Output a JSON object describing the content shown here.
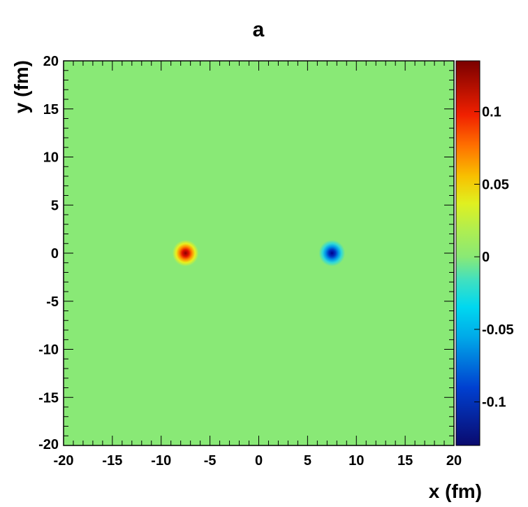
{
  "chart_data": {
    "type": "heatmap",
    "title": "a",
    "xlabel": "x (fm)",
    "ylabel": "y (fm)",
    "xlim": [
      -20,
      20
    ],
    "ylim": [
      -20,
      20
    ],
    "xticks": [
      "-20",
      "-15",
      "-10",
      "-5",
      "0",
      "5",
      "10",
      "15",
      "20"
    ],
    "yticks": [
      "-20",
      "-15",
      "-10",
      "-5",
      "0",
      "5",
      "10",
      "15",
      "20"
    ],
    "background_value": 0,
    "features": [
      {
        "x": -7.5,
        "y": 0,
        "peak": 0.135,
        "sigma": 0.45
      },
      {
        "x": 7.5,
        "y": 0,
        "peak": -0.13,
        "sigma": 0.45
      }
    ],
    "colorbar": {
      "min": -0.13,
      "max": 0.135,
      "ticks": [
        "0.1",
        "0.05",
        "0",
        "-0.05",
        "-0.1"
      ],
      "tick_values": [
        0.1,
        0.05,
        0,
        -0.05,
        -0.1
      ]
    },
    "grid": false,
    "colors": {
      "background_field": "#89e976",
      "positive_peak": "#8b0000",
      "negative_peak": "#00008b"
    }
  }
}
